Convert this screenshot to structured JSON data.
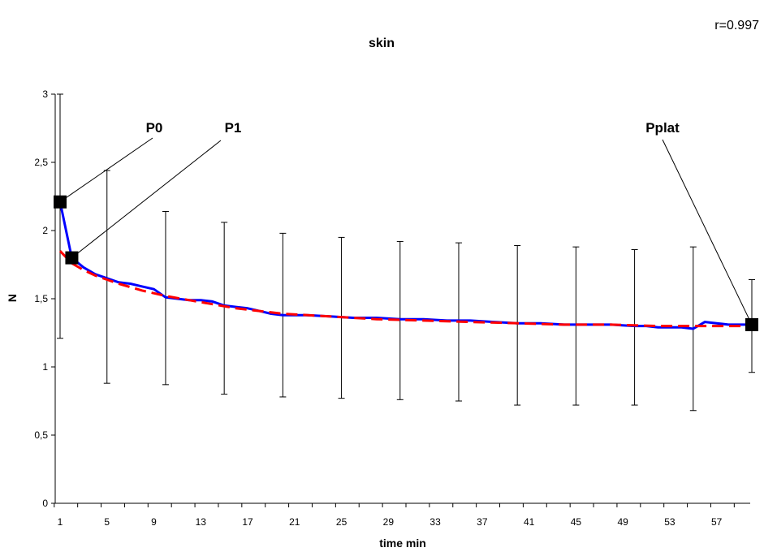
{
  "chart_data": {
    "type": "line",
    "title": "skin",
    "corner_text": "r=0.997",
    "xlabel": "time min",
    "ylabel": "N",
    "ylim": [
      0,
      3
    ],
    "xlim": [
      1,
      60
    ],
    "y_ticks": [
      "0",
      "0,5",
      "1",
      "1,5",
      "2",
      "2,5",
      "3"
    ],
    "y_tick_values": [
      0,
      0.5,
      1,
      1.5,
      2,
      2.5,
      3
    ],
    "x_tick_labels": [
      "1",
      "5",
      "9",
      "13",
      "17",
      "21",
      "25",
      "29",
      "33",
      "37",
      "41",
      "45",
      "49",
      "53",
      "57"
    ],
    "x_tick_values": [
      1,
      5,
      9,
      13,
      17,
      21,
      25,
      29,
      33,
      37,
      41,
      45,
      49,
      53,
      57
    ],
    "grid": false,
    "series": [
      {
        "style": "solid",
        "color": "#0000ff",
        "x": [
          1,
          2,
          3,
          4,
          5,
          6,
          7,
          8,
          9,
          10,
          11,
          12,
          13,
          14,
          15,
          16,
          17,
          18,
          19,
          20,
          22,
          24,
          26,
          28,
          30,
          32,
          34,
          36,
          38,
          40,
          42,
          44,
          46,
          48,
          50,
          51,
          52,
          54,
          55,
          56,
          57,
          58,
          59,
          60
        ],
        "y": [
          2.21,
          1.8,
          1.73,
          1.68,
          1.65,
          1.62,
          1.61,
          1.59,
          1.57,
          1.51,
          1.5,
          1.49,
          1.49,
          1.48,
          1.45,
          1.44,
          1.43,
          1.41,
          1.39,
          1.38,
          1.38,
          1.37,
          1.36,
          1.36,
          1.35,
          1.35,
          1.34,
          1.34,
          1.33,
          1.32,
          1.32,
          1.31,
          1.31,
          1.31,
          1.3,
          1.3,
          1.29,
          1.29,
          1.28,
          1.33,
          1.32,
          1.31,
          1.31,
          1.31
        ]
      },
      {
        "style": "dashed",
        "color": "#ff0000",
        "x": [
          1,
          2,
          3,
          4,
          5,
          6,
          8,
          10,
          12,
          14,
          16,
          18,
          20,
          24,
          28,
          32,
          36,
          40,
          44,
          48,
          52,
          56,
          60
        ],
        "y": [
          1.85,
          1.76,
          1.71,
          1.67,
          1.64,
          1.61,
          1.56,
          1.52,
          1.49,
          1.46,
          1.43,
          1.41,
          1.39,
          1.37,
          1.35,
          1.34,
          1.33,
          1.32,
          1.31,
          1.31,
          1.3,
          1.3,
          1.3
        ]
      }
    ],
    "error_bars": [
      {
        "x": 1,
        "low": 1.21,
        "high": 3.0
      },
      {
        "x": 5,
        "low": 0.88,
        "high": 2.44
      },
      {
        "x": 10,
        "low": 0.87,
        "high": 2.14
      },
      {
        "x": 15,
        "low": 0.8,
        "high": 2.06
      },
      {
        "x": 20,
        "low": 0.78,
        "high": 1.98
      },
      {
        "x": 25,
        "low": 0.77,
        "high": 1.95
      },
      {
        "x": 30,
        "low": 0.76,
        "high": 1.92
      },
      {
        "x": 35,
        "low": 0.75,
        "high": 1.91
      },
      {
        "x": 40,
        "low": 0.72,
        "high": 1.89
      },
      {
        "x": 45,
        "low": 0.72,
        "high": 1.88
      },
      {
        "x": 50,
        "low": 0.72,
        "high": 1.86
      },
      {
        "x": 55,
        "low": 0.68,
        "high": 1.88
      },
      {
        "x": 60,
        "low": 0.96,
        "high": 1.64
      }
    ],
    "annotations": [
      {
        "label": "P0",
        "x": 1,
        "y": 2.21
      },
      {
        "label": "P1",
        "x": 2,
        "y": 1.8
      },
      {
        "label": "Pplat",
        "x": 60,
        "y": 1.31
      }
    ]
  }
}
